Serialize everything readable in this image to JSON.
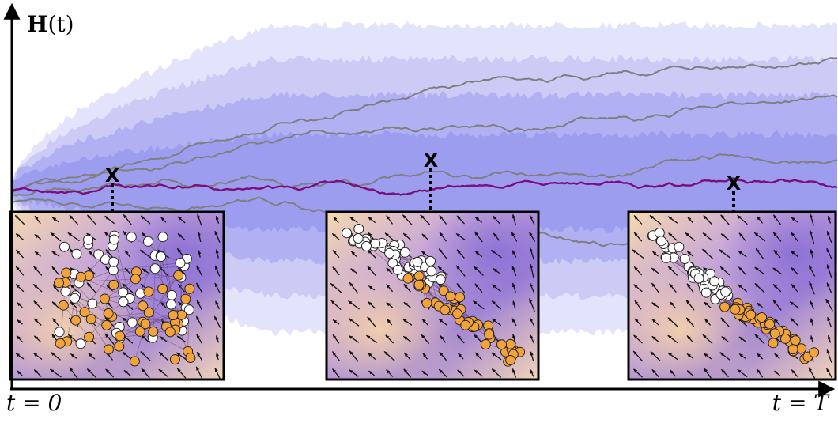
{
  "labels": {
    "y_axis_bold": "H",
    "y_axis_arg": "(t)",
    "x_start": "t = 0",
    "x_end": "t = T",
    "marker": "X"
  },
  "colors": {
    "band_outer": "#e3e3fb",
    "band_mid": "#cbcbf6",
    "band_inner": "#b0b0f2",
    "band_core": "#9d9df0",
    "main_path": "#7a0f7a",
    "sample_paths": "#7f7f7f",
    "white_node": "#ffffff",
    "orange_node": "#f2a33a",
    "edge": "#6a4a8a"
  },
  "snapshots": [
    {
      "name": "snapshot-1",
      "spread": "mixed"
    },
    {
      "name": "snapshot-2",
      "spread": "separating"
    },
    {
      "name": "snapshot-3",
      "spread": "separated"
    }
  ]
}
